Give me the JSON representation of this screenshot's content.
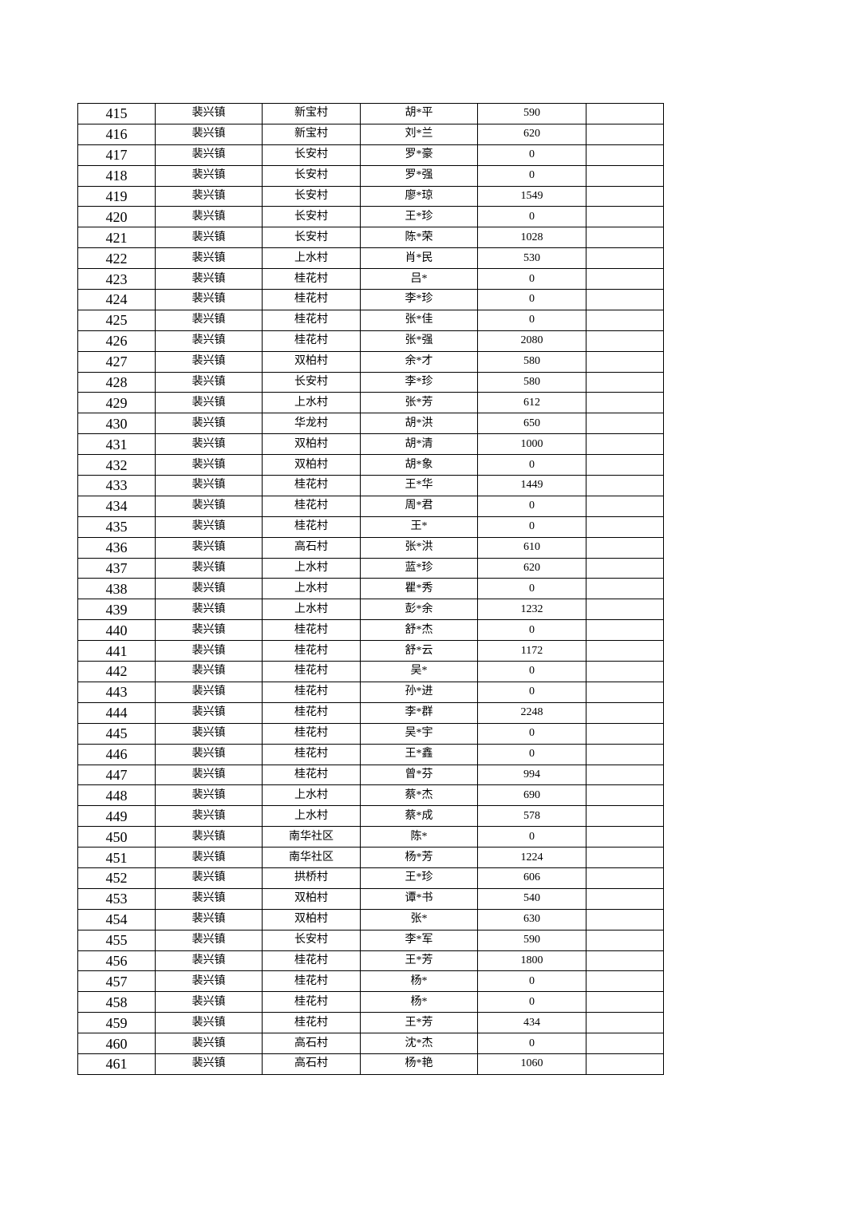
{
  "table": {
    "rows": [
      [
        "415",
        "裴兴镇",
        "新宝村",
        "胡*平",
        "590",
        ""
      ],
      [
        "416",
        "裴兴镇",
        "新宝村",
        "刘*兰",
        "620",
        ""
      ],
      [
        "417",
        "裴兴镇",
        "长安村",
        "罗*豪",
        "0",
        ""
      ],
      [
        "418",
        "裴兴镇",
        "长安村",
        "罗*强",
        "0",
        ""
      ],
      [
        "419",
        "裴兴镇",
        "长安村",
        "廖*琼",
        "1549",
        ""
      ],
      [
        "420",
        "裴兴镇",
        "长安村",
        "王*珍",
        "0",
        ""
      ],
      [
        "421",
        "裴兴镇",
        "长安村",
        "陈*荣",
        "1028",
        ""
      ],
      [
        "422",
        "裴兴镇",
        "上水村",
        "肖*民",
        "530",
        ""
      ],
      [
        "423",
        "裴兴镇",
        "桂花村",
        "吕*",
        "0",
        ""
      ],
      [
        "424",
        "裴兴镇",
        "桂花村",
        "李*珍",
        "0",
        ""
      ],
      [
        "425",
        "裴兴镇",
        "桂花村",
        "张*佳",
        "0",
        ""
      ],
      [
        "426",
        "裴兴镇",
        "桂花村",
        "张*强",
        "2080",
        ""
      ],
      [
        "427",
        "裴兴镇",
        "双柏村",
        "余*才",
        "580",
        ""
      ],
      [
        "428",
        "裴兴镇",
        "长安村",
        "李*珍",
        "580",
        ""
      ],
      [
        "429",
        "裴兴镇",
        "上水村",
        "张*芳",
        "612",
        ""
      ],
      [
        "430",
        "裴兴镇",
        "华龙村",
        "胡*洪",
        "650",
        ""
      ],
      [
        "431",
        "裴兴镇",
        "双柏村",
        "胡*清",
        "1000",
        ""
      ],
      [
        "432",
        "裴兴镇",
        "双柏村",
        "胡*象",
        "0",
        ""
      ],
      [
        "433",
        "裴兴镇",
        "桂花村",
        "王*华",
        "1449",
        ""
      ],
      [
        "434",
        "裴兴镇",
        "桂花村",
        "周*君",
        "0",
        ""
      ],
      [
        "435",
        "裴兴镇",
        "桂花村",
        "王*",
        "0",
        ""
      ],
      [
        "436",
        "裴兴镇",
        "高石村",
        "张*洪",
        "610",
        ""
      ],
      [
        "437",
        "裴兴镇",
        "上水村",
        "蓝*珍",
        "620",
        ""
      ],
      [
        "438",
        "裴兴镇",
        "上水村",
        "瞿*秀",
        "0",
        ""
      ],
      [
        "439",
        "裴兴镇",
        "上水村",
        "彭*余",
        "1232",
        ""
      ],
      [
        "440",
        "裴兴镇",
        "桂花村",
        "舒*杰",
        "0",
        ""
      ],
      [
        "441",
        "裴兴镇",
        "桂花村",
        "舒*云",
        "1172",
        ""
      ],
      [
        "442",
        "裴兴镇",
        "桂花村",
        "吴*",
        "0",
        ""
      ],
      [
        "443",
        "裴兴镇",
        "桂花村",
        "孙*进",
        "0",
        ""
      ],
      [
        "444",
        "裴兴镇",
        "桂花村",
        "李*群",
        "2248",
        ""
      ],
      [
        "445",
        "裴兴镇",
        "桂花村",
        "吴*宇",
        "0",
        ""
      ],
      [
        "446",
        "裴兴镇",
        "桂花村",
        "王*鑫",
        "0",
        ""
      ],
      [
        "447",
        "裴兴镇",
        "桂花村",
        "曾*芬",
        "994",
        ""
      ],
      [
        "448",
        "裴兴镇",
        "上水村",
        "蔡*杰",
        "690",
        ""
      ],
      [
        "449",
        "裴兴镇",
        "上水村",
        "蔡*成",
        "578",
        ""
      ],
      [
        "450",
        "裴兴镇",
        "南华社区",
        "陈*",
        "0",
        ""
      ],
      [
        "451",
        "裴兴镇",
        "南华社区",
        "杨*芳",
        "1224",
        ""
      ],
      [
        "452",
        "裴兴镇",
        "拱桥村",
        "王*珍",
        "606",
        ""
      ],
      [
        "453",
        "裴兴镇",
        "双柏村",
        "谭*书",
        "540",
        ""
      ],
      [
        "454",
        "裴兴镇",
        "双柏村",
        "张*",
        "630",
        ""
      ],
      [
        "455",
        "裴兴镇",
        "长安村",
        "李*军",
        "590",
        ""
      ],
      [
        "456",
        "裴兴镇",
        "桂花村",
        "王*芳",
        "1800",
        ""
      ],
      [
        "457",
        "裴兴镇",
        "桂花村",
        "杨*",
        "0",
        ""
      ],
      [
        "458",
        "裴兴镇",
        "桂花村",
        "杨*",
        "0",
        ""
      ],
      [
        "459",
        "裴兴镇",
        "桂花村",
        "王*芳",
        "434",
        ""
      ],
      [
        "460",
        "裴兴镇",
        "高石村",
        "沈*杰",
        "0",
        ""
      ],
      [
        "461",
        "裴兴镇",
        "高石村",
        "杨*艳",
        "1060",
        ""
      ]
    ]
  }
}
